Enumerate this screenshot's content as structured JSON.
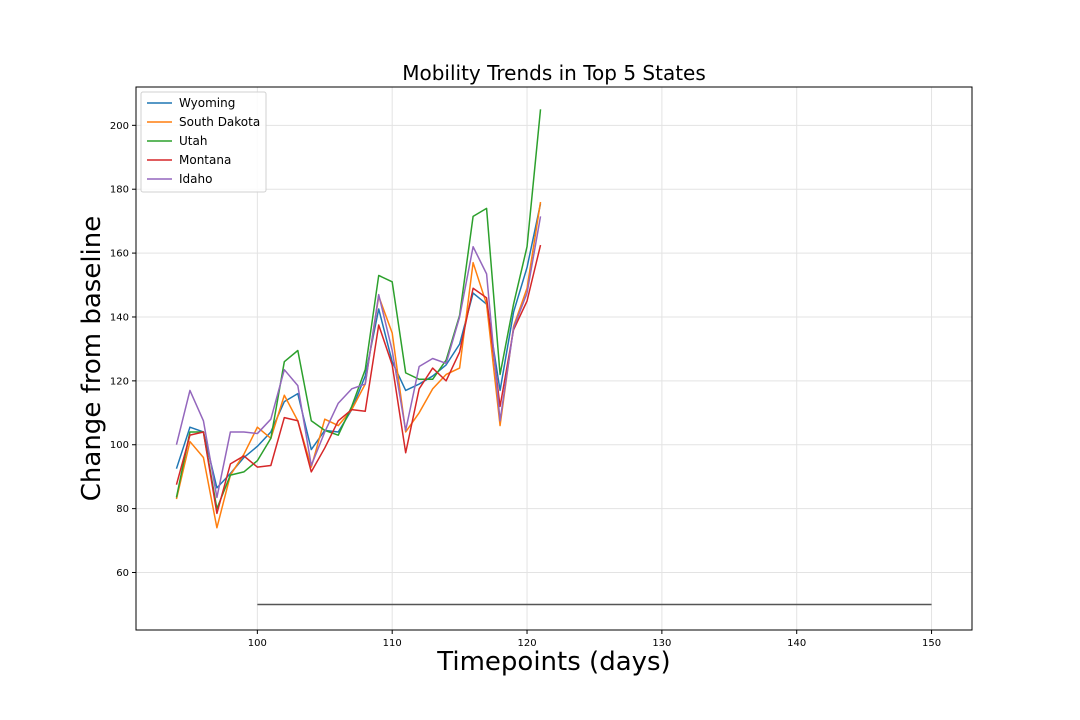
{
  "chart_data": {
    "type": "line",
    "title": "Mobility Trends in Top 5 States",
    "xlabel": "Timepoints (days)",
    "ylabel": "Change from baseline",
    "xlim": [
      91,
      153
    ],
    "ylim": [
      42,
      212
    ],
    "xticks": [
      100,
      110,
      120,
      130,
      140,
      150
    ],
    "yticks": [
      60,
      80,
      100,
      120,
      140,
      160,
      180,
      200
    ],
    "grid": true,
    "legend_position": "top-left",
    "x": [
      94,
      95,
      96,
      97,
      98,
      99,
      100,
      101,
      102,
      103,
      104,
      105,
      106,
      107,
      108,
      109,
      110,
      111,
      112,
      113,
      114,
      115,
      116,
      117,
      118,
      119,
      120,
      121
    ],
    "series": [
      {
        "name": "Wyoming",
        "color": "#1f77b4",
        "values": [
          92.5,
          105.5,
          104,
          86.5,
          91,
          96,
          99.5,
          104,
          113.5,
          116,
          98.5,
          104.5,
          104,
          111,
          121.5,
          142.5,
          126,
          117,
          119,
          121.5,
          125,
          131.5,
          147.5,
          144,
          117,
          141.5,
          155.5,
          175.5
        ]
      },
      {
        "name": "South Dakota",
        "color": "#ff7f0e",
        "values": [
          83,
          101,
          96,
          74,
          90.5,
          97,
          105.5,
          102,
          115.5,
          107.5,
          93,
          108,
          106,
          111,
          119,
          146.5,
          135,
          104,
          110,
          117.5,
          122,
          124,
          157,
          144,
          106,
          137,
          149,
          176
        ]
      },
      {
        "name": "Utah",
        "color": "#2ca02c",
        "values": [
          83.5,
          104,
          104,
          80,
          90.5,
          91.5,
          95,
          102,
          126,
          129.5,
          107.5,
          104.5,
          103,
          112,
          123.5,
          153,
          151,
          122.5,
          120.5,
          120.5,
          126.5,
          140.5,
          171.5,
          174,
          122,
          144,
          162,
          205
        ]
      },
      {
        "name": "Montana",
        "color": "#d62728",
        "values": [
          87.5,
          103,
          104,
          78.5,
          94,
          96.5,
          93,
          93.5,
          108.5,
          107.5,
          91.5,
          99,
          107.5,
          111,
          110.5,
          137.5,
          125,
          97.5,
          117.5,
          124,
          120,
          129,
          149,
          146,
          112,
          136,
          145,
          162.5
        ]
      },
      {
        "name": "Idaho",
        "color": "#9467bd",
        "values": [
          100,
          117,
          107.5,
          83.5,
          104,
          104,
          103.5,
          108,
          123.5,
          118.5,
          93.5,
          104,
          113,
          117.5,
          119,
          147,
          129.5,
          104.5,
          124.5,
          127,
          125.5,
          140,
          162,
          153.5,
          107.5,
          136.5,
          147.5,
          171.5
        ]
      }
    ],
    "reference_line": {
      "x": [
        100,
        150
      ],
      "y": [
        50,
        50
      ],
      "color": "#555555"
    }
  }
}
